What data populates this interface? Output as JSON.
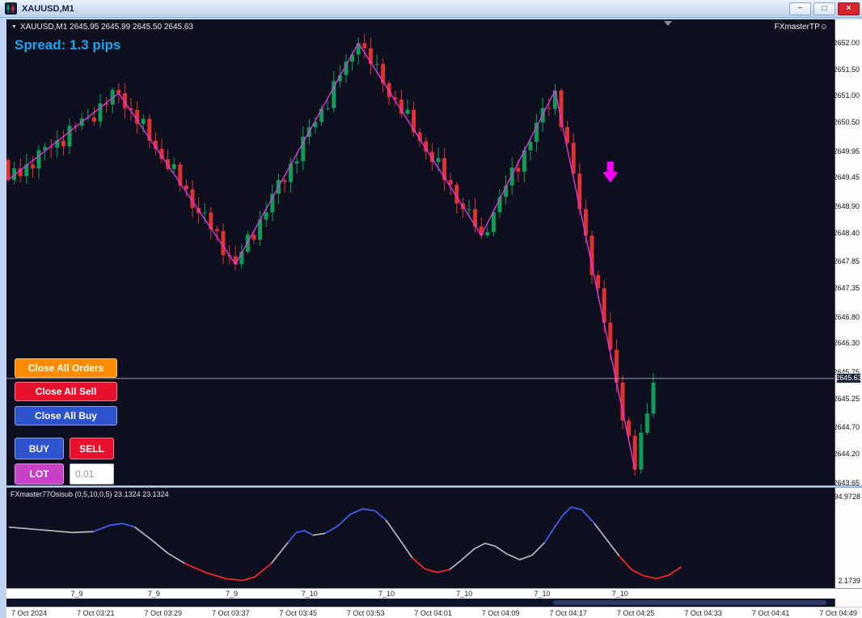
{
  "window": {
    "title": "XAUUSD,M1",
    "controls": {
      "minimize": "−",
      "restore": "□",
      "close": "×"
    }
  },
  "chart": {
    "collapse_arrow": "▼",
    "symbol_info": "XAUUSD,M1  2645.95 2645.99 2645.50 2645.63",
    "ea_badge": "FXmasterTP☺",
    "spread": "Spread: 1.3 pips",
    "bid_label": "2645.63"
  },
  "panel": {
    "close_all_orders": "Close All Orders",
    "close_all_sell": "Close All Sell",
    "close_all_buy": "Close All Buy",
    "buy": "BUY",
    "sell": "SELL",
    "lot": "LOT",
    "lot_value": "0.01"
  },
  "indicator": {
    "label": "FXmaster77Osisub (0,5,10,0,5) 23.1324 23.1324",
    "scale_max": "94.9728",
    "scale_min": "2.1739"
  },
  "time_axis": {
    "row1": [
      {
        "t": "7_9",
        "x": 0.085
      },
      {
        "t": "7_9",
        "x": 0.178
      },
      {
        "t": "7_9",
        "x": 0.272
      },
      {
        "t": "7_10",
        "x": 0.366
      },
      {
        "t": "7_10",
        "x": 0.459
      },
      {
        "t": "7_10",
        "x": 0.553
      },
      {
        "t": "7_10",
        "x": 0.647
      },
      {
        "t": "7_10",
        "x": 0.741
      }
    ],
    "row2": [
      "7 Oct 2024",
      "7 Oct 03:21",
      "7 Oct 03:29",
      "7 Oct 03:37",
      "7 Oct 03:45",
      "7 Oct 03:53",
      "7 Oct 04:01",
      "7 Oct 04:09",
      "7 Oct 04:17",
      "7 Oct 04:25",
      "7 Oct 04:33",
      "7 Oct 04:41",
      "7 Oct 04:49"
    ]
  },
  "chart_data": {
    "type": "candlestick",
    "symbol": "XAUUSD",
    "timeframe": "M1",
    "quote": {
      "open": 2645.95,
      "high": 2645.99,
      "low": 2645.5,
      "close": 2645.63
    },
    "bid": 2645.63,
    "spread_pips": 1.3,
    "ylim": [
      2643.6,
      2652.45
    ],
    "price_ticks": [
      2652.0,
      2651.5,
      2651.0,
      2650.5,
      2649.95,
      2649.45,
      2648.9,
      2648.4,
      2647.85,
      2647.35,
      2646.8,
      2646.3,
      2645.75,
      2645.25,
      2644.7,
      2644.2,
      2643.65
    ],
    "candle_count": 106,
    "zigzag_points": [
      [
        0,
        2649.4
      ],
      [
        18,
        2651.05
      ],
      [
        37,
        2647.8
      ],
      [
        57,
        2652.0
      ],
      [
        77,
        2648.35
      ],
      [
        89,
        2651.1
      ],
      [
        102,
        2643.9
      ]
    ],
    "tail_point": [
      105,
      2645.55
    ],
    "sell_arrow": {
      "index": 98,
      "price": 2649.75,
      "direction": "down"
    },
    "oscillator": {
      "name": "FXmaster77Osisub",
      "params": "(0,5,10,0,5)",
      "value": 23.1324,
      "scale": [
        2.1739,
        94.9728
      ],
      "points": [
        [
          0.003,
          62,
          "g"
        ],
        [
          0.04,
          59,
          "g"
        ],
        [
          0.08,
          56,
          "g"
        ],
        [
          0.105,
          57,
          "b"
        ],
        [
          0.125,
          64,
          "b"
        ],
        [
          0.14,
          66,
          "b"
        ],
        [
          0.155,
          62,
          "g"
        ],
        [
          0.175,
          48,
          "g"
        ],
        [
          0.195,
          33,
          "g"
        ],
        [
          0.215,
          22,
          "r"
        ],
        [
          0.24,
          12,
          "r"
        ],
        [
          0.265,
          5,
          "r"
        ],
        [
          0.285,
          3,
          "r"
        ],
        [
          0.3,
          7,
          "r"
        ],
        [
          0.32,
          22,
          "g"
        ],
        [
          0.34,
          45,
          "b"
        ],
        [
          0.35,
          56,
          "b"
        ],
        [
          0.36,
          58,
          "b"
        ],
        [
          0.37,
          53,
          "g"
        ],
        [
          0.385,
          55,
          "b"
        ],
        [
          0.4,
          63,
          "b"
        ],
        [
          0.415,
          76,
          "b"
        ],
        [
          0.43,
          82,
          "b"
        ],
        [
          0.445,
          80,
          "b"
        ],
        [
          0.458,
          70,
          "g"
        ],
        [
          0.475,
          48,
          "g"
        ],
        [
          0.49,
          28,
          "r"
        ],
        [
          0.505,
          16,
          "r"
        ],
        [
          0.52,
          12,
          "r"
        ],
        [
          0.535,
          15,
          "g"
        ],
        [
          0.55,
          26,
          "g"
        ],
        [
          0.565,
          38,
          "g"
        ],
        [
          0.578,
          44,
          "g"
        ],
        [
          0.59,
          41,
          "g"
        ],
        [
          0.605,
          32,
          "g"
        ],
        [
          0.62,
          26,
          "g"
        ],
        [
          0.635,
          31,
          "g"
        ],
        [
          0.65,
          45,
          "b"
        ],
        [
          0.662,
          62,
          "b"
        ],
        [
          0.672,
          75,
          "b"
        ],
        [
          0.682,
          84,
          "b"
        ],
        [
          0.695,
          81,
          "b"
        ],
        [
          0.71,
          66,
          "g"
        ],
        [
          0.725,
          48,
          "g"
        ],
        [
          0.74,
          30,
          "r"
        ],
        [
          0.755,
          15,
          "r"
        ],
        [
          0.77,
          8,
          "r"
        ],
        [
          0.785,
          5,
          "r"
        ],
        [
          0.8,
          9,
          "r"
        ],
        [
          0.815,
          18,
          "r"
        ]
      ]
    },
    "colors": {
      "bull": "#0e9c57",
      "bear": "#e03131",
      "zigzag": "#e935e9",
      "arrow": "#ff00ff",
      "bid_line": "#a9b7cc",
      "osc": {
        "g": "#b0b0b0",
        "b": "#3f5de8",
        "r": "#ef2929"
      }
    }
  }
}
